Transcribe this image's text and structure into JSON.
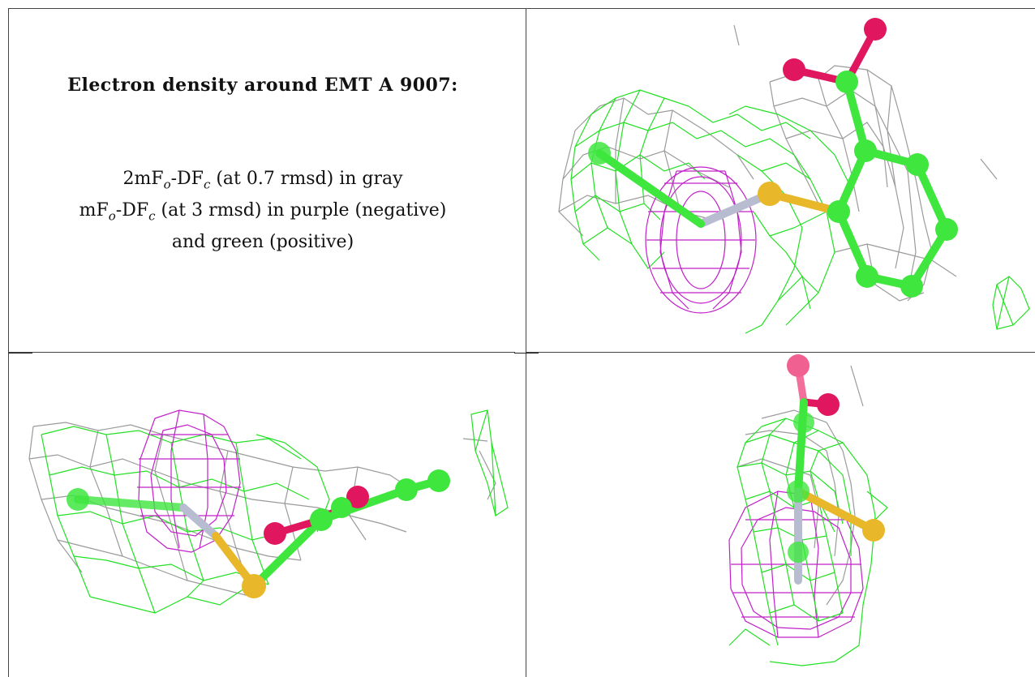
{
  "caption": {
    "title": "Electron density around EMT A 9007:",
    "line1": {
      "pre": "2mF",
      "sub1": "o",
      "mid": "-DF",
      "sub2": "c",
      "post": " (at 0.7 rmsd) in gray"
    },
    "line2": {
      "pre": "mF",
      "sub1": "o",
      "mid": "-DF",
      "sub2": "c",
      "post": " (at 3 rmsd) in purple (negative)"
    },
    "line3": "and green (positive)"
  },
  "colors": {
    "map_2fofc": "#9a9a9a",
    "map_negative": "#c020c8",
    "map_positive": "#22e022",
    "carbon": "#3ee63e",
    "oxygen": "#e0175f",
    "sulfur": "#e8b82a",
    "metal": "#b8bcd0",
    "border": "#444444"
  },
  "panels": [
    {
      "id": "view-top-right"
    },
    {
      "id": "view-bottom-left"
    },
    {
      "id": "view-bottom-right"
    }
  ]
}
